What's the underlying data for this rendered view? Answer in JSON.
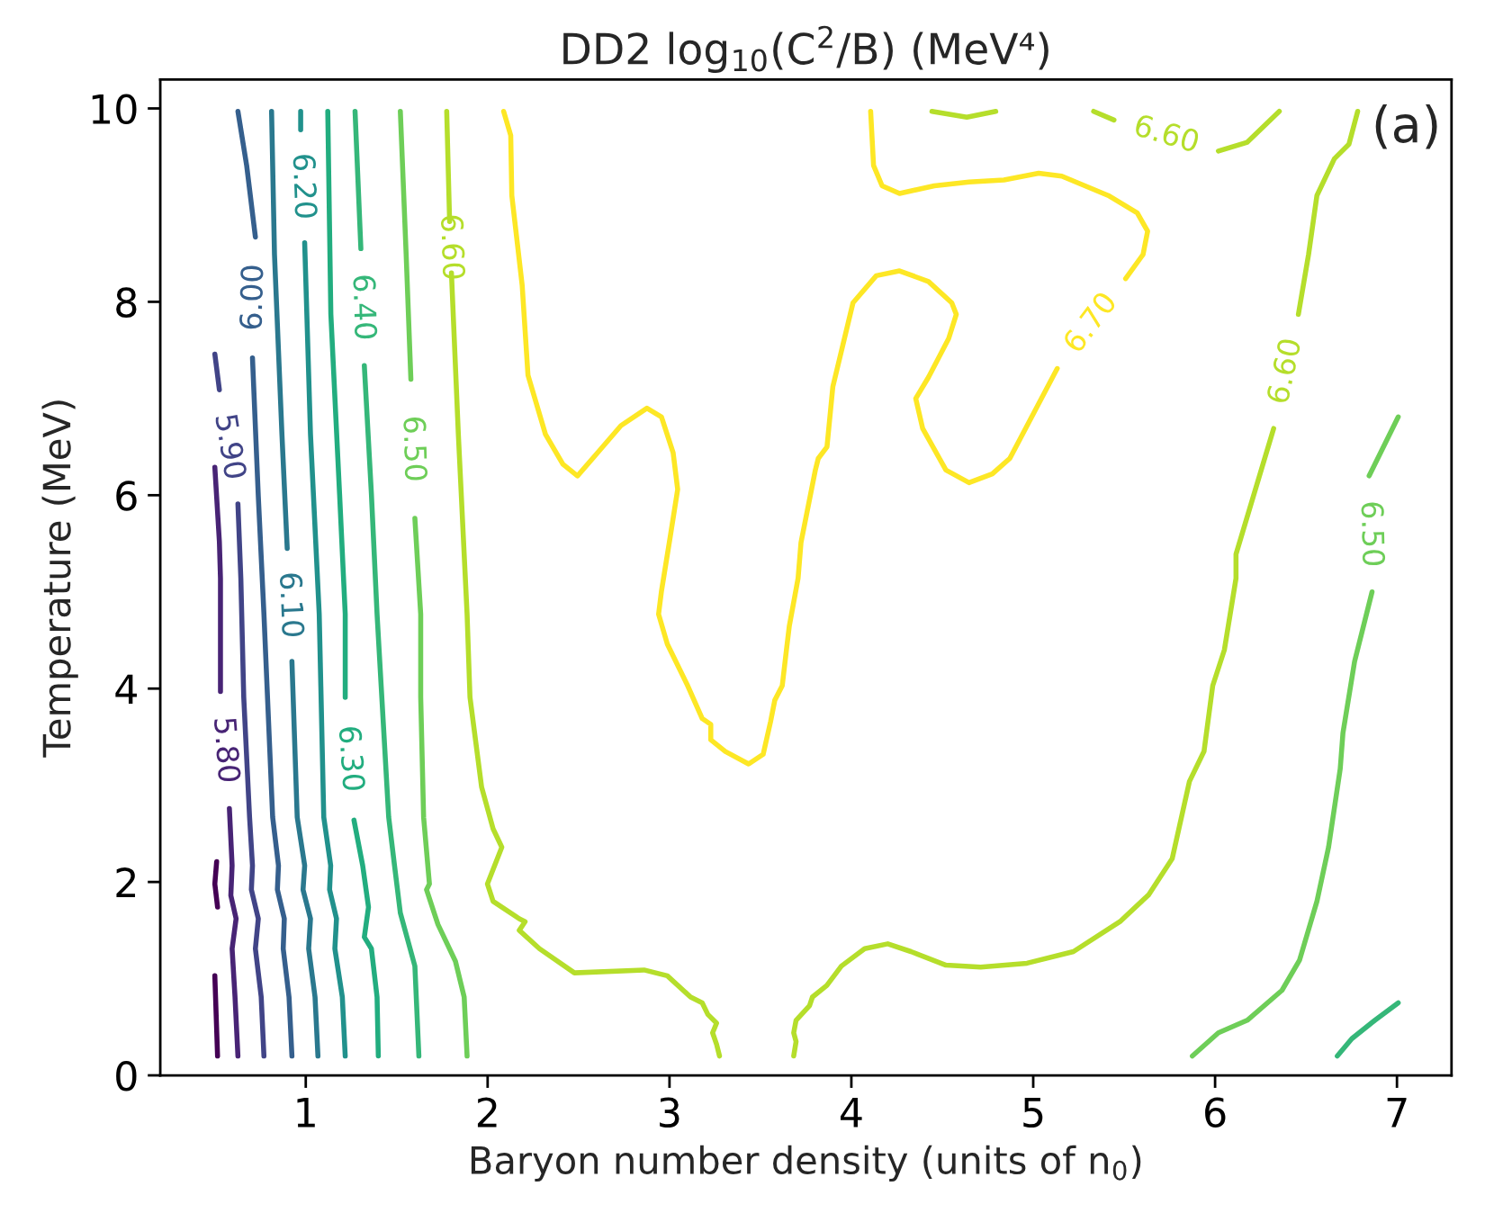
{
  "chart_data": {
    "type": "line",
    "title": "DD2 log$_{10}$(C$^{2}$/B) (MeV⁴)",
    "xlabel": "Baryon number density (units of n$_{0}$)",
    "ylabel": "Temperature (MeV)",
    "xlim": [
      0.2,
      7.3
    ],
    "ylim": [
      0,
      10.3
    ],
    "xticks": [
      1,
      2,
      3,
      4,
      5,
      6,
      7
    ],
    "yticks": [
      0,
      2,
      4,
      6,
      8,
      10
    ],
    "annotations": [
      "(a)"
    ],
    "series": [
      {
        "color": "#440154",
        "x": [
          0.51,
          0.5,
          0.515
        ],
        "values": [
          2.21,
          1.98,
          1.74
        ]
      },
      {
        "color": "#440154",
        "x": [
          0.5,
          0.515
        ],
        "values": [
          1.03,
          0.2
        ]
      },
      {
        "name": "5.80",
        "color": "#482475",
        "x": [
          0.5,
          0.525,
          0.531,
          0.531,
          null,
          0.58,
          0.595,
          0.588,
          0.617,
          0.595,
          0.611,
          0.627
        ],
        "values": [
          6.29,
          5.52,
          5.14,
          3.97,
          null,
          2.76,
          2.17,
          1.86,
          1.62,
          1.31,
          0.81,
          0.2
        ]
      },
      {
        "name": "5.90",
        "color": "#414487",
        "x": [
          0.5,
          0.525,
          null,
          0.627,
          0.643,
          0.659,
          0.691,
          0.707,
          0.701,
          0.739,
          0.723,
          0.755,
          0.77
        ],
        "values": [
          7.46,
          7.09,
          null,
          5.91,
          5.14,
          3.91,
          2.67,
          2.17,
          1.92,
          1.62,
          1.31,
          0.81,
          0.2
        ]
      },
      {
        "name": "6.00",
        "color": "#355f8d",
        "x": [
          0.627,
          0.675,
          0.723,
          null,
          0.707,
          0.739,
          0.77,
          0.818,
          0.85,
          0.844,
          0.882,
          0.876,
          0.908,
          0.924
        ],
        "values": [
          9.97,
          9.41,
          8.67,
          null,
          7.42,
          5.99,
          4.77,
          2.67,
          2.17,
          1.92,
          1.62,
          1.31,
          0.81,
          0.2
        ]
      },
      {
        "name": "6.10",
        "color": "#2a788e",
        "x": [
          0.812,
          0.828,
          0.869,
          0.898,
          null,
          0.924,
          0.953,
          0.994,
          0.985,
          1.026,
          1.016,
          1.051,
          1.067
        ],
        "values": [
          9.97,
          8.49,
          6.63,
          5.45,
          null,
          4.28,
          2.67,
          2.17,
          1.92,
          1.62,
          1.31,
          0.81,
          0.2
        ]
      },
      {
        "name": "6.20",
        "color": "#21918c",
        "x": [
          0.972,
          0.972,
          null,
          0.994,
          1.026,
          1.074,
          1.099,
          1.137,
          1.131,
          1.169,
          1.16,
          1.201,
          1.217
        ],
        "values": [
          9.97,
          9.78,
          null,
          8.61,
          6.63,
          4.77,
          2.67,
          2.17,
          1.92,
          1.62,
          1.31,
          0.81,
          0.2
        ]
      },
      {
        "name": "6.30",
        "color": "#22ad7f",
        "x": [
          1.121,
          1.138,
          1.186,
          1.217,
          1.217,
          null,
          1.265,
          1.313,
          1.345,
          1.322,
          1.361,
          1.392,
          1.399
        ],
        "values": [
          9.97,
          7.87,
          6.01,
          4.77,
          3.91,
          null,
          2.64,
          2.17,
          1.74,
          1.43,
          1.31,
          0.81,
          0.2
        ]
      },
      {
        "name": "6.40",
        "color": "#35b779",
        "x": [
          1.271,
          1.303,
          null,
          1.322,
          1.361,
          1.392,
          1.456,
          1.488,
          1.52,
          1.6,
          1.622
        ],
        "values": [
          9.97,
          8.55,
          null,
          7.34,
          6.01,
          4.77,
          2.67,
          2.17,
          1.68,
          1.13,
          0.2
        ]
      },
      {
        "name": "6.50",
        "color": "#6ece58",
        "x": [
          1.52,
          1.552,
          1.578,
          null,
          1.6,
          1.632,
          1.632,
          1.648,
          1.68,
          1.664,
          1.727,
          1.823,
          1.871,
          1.887
        ],
        "values": [
          9.97,
          8.49,
          7.2,
          null,
          5.76,
          4.77,
          3.91,
          2.67,
          1.98,
          1.92,
          1.56,
          1.18,
          0.81,
          0.2
        ]
      },
      {
        "name": "6.60",
        "color": "#b5de2b",
        "x": [
          1.775,
          1.791,
          null,
          1.801,
          1.839,
          1.887,
          1.903,
          1.967,
          2.03,
          2.078,
          1.999,
          2.03,
          2.174,
          2.206,
          2.174,
          2.285,
          2.477,
          2.86,
          2.988,
          3.116,
          3.18,
          3.211,
          3.259,
          3.237,
          3.259,
          3.275
        ],
        "values": [
          9.97,
          8.83,
          null,
          8.3,
          6.63,
          4.77,
          3.91,
          2.98,
          2.55,
          2.36,
          1.98,
          1.8,
          1.62,
          1.59,
          1.5,
          1.31,
          1.06,
          1.09,
          1.03,
          0.81,
          0.75,
          0.63,
          0.54,
          0.44,
          0.32,
          0.2
        ]
      },
      {
        "name": "6.60",
        "color": "#b5de2b",
        "x": [
          6.784,
          6.736,
          6.656,
          6.56,
          6.514,
          6.458,
          null,
          6.322,
          6.115,
          6.115,
          6.051,
          5.987,
          5.939,
          5.859,
          5.764,
          5.636,
          5.477,
          5.221,
          4.966,
          4.711,
          4.52,
          4.328,
          4.2,
          4.073,
          3.945,
          3.865,
          3.786,
          3.77,
          3.696,
          3.683,
          3.696,
          3.683
        ],
        "values": [
          9.97,
          9.63,
          9.48,
          9.1,
          8.49,
          7.87,
          null,
          6.69,
          5.39,
          5.14,
          4.4,
          4.03,
          3.35,
          3.04,
          2.24,
          1.87,
          1.59,
          1.28,
          1.16,
          1.12,
          1.14,
          1.28,
          1.36,
          1.31,
          1.13,
          0.93,
          0.81,
          0.72,
          0.57,
          0.44,
          0.35,
          0.2
        ]
      },
      {
        "color": "#b5de2b",
        "x": [
          4.443,
          4.635,
          4.794
        ],
        "values": [
          9.97,
          9.91,
          9.97
        ]
      },
      {
        "name": "6.60",
        "color": "#b5de2b",
        "x": [
          5.332,
          5.444,
          null,
          6.018,
          6.177,
          6.353
        ],
        "values": [
          9.97,
          9.88,
          null,
          9.56,
          9.65,
          9.97
        ]
      },
      {
        "name": "6.50",
        "color": "#6ece58",
        "x": [
          7.007,
          6.847,
          null,
          6.863,
          6.767,
          6.703,
          6.688,
          6.624,
          6.56,
          6.464,
          6.368,
          6.177,
          6.018,
          5.875
        ],
        "values": [
          6.81,
          6.2,
          null,
          5.0,
          4.28,
          3.54,
          3.17,
          2.36,
          1.8,
          1.19,
          0.88,
          0.57,
          0.44,
          0.2
        ]
      },
      {
        "color": "#35b779",
        "x": [
          6.672,
          6.752,
          6.879,
          7.007
        ],
        "values": [
          0.2,
          0.38,
          0.57,
          0.75
        ]
      },
      {
        "name": "6.70",
        "color": "#fde725",
        "x": [
          2.088,
          2.127,
          2.133,
          2.19,
          2.222,
          2.318,
          2.414,
          2.494,
          2.605,
          2.733,
          2.876,
          2.956,
          3.02,
          3.045,
          3.004,
          2.956,
          2.94,
          2.988,
          3.1,
          3.18,
          3.227,
          3.227,
          3.307,
          3.435,
          3.515,
          3.556,
          3.579,
          3.62,
          3.643,
          3.659,
          3.707,
          3.723,
          3.802,
          3.818,
          3.866,
          3.898,
          4.009,
          4.137,
          4.265,
          4.424,
          4.552,
          4.577,
          4.535,
          4.424,
          4.354,
          4.392,
          4.52,
          4.647,
          4.775,
          4.871,
          5.132,
          null,
          5.508,
          5.604,
          5.629,
          5.572,
          5.412,
          5.157,
          5.03,
          4.839,
          4.647,
          4.456,
          4.265,
          4.169,
          4.122,
          4.106
        ],
        "values": [
          9.97,
          9.72,
          9.1,
          8.17,
          7.24,
          6.63,
          6.32,
          6.2,
          6.44,
          6.72,
          6.9,
          6.81,
          6.44,
          6.06,
          5.57,
          5.01,
          4.77,
          4.46,
          4.03,
          3.69,
          3.63,
          3.47,
          3.35,
          3.22,
          3.32,
          3.66,
          3.88,
          4.03,
          4.4,
          4.65,
          5.14,
          5.51,
          6.26,
          6.38,
          6.5,
          7.12,
          7.99,
          8.27,
          8.32,
          8.21,
          7.99,
          7.87,
          7.62,
          7.22,
          7.0,
          6.69,
          6.26,
          6.13,
          6.22,
          6.38,
          7.31,
          null,
          8.24,
          8.49,
          8.73,
          8.92,
          9.1,
          9.3,
          9.33,
          9.26,
          9.24,
          9.2,
          9.12,
          9.2,
          9.41,
          9.97
        ]
      }
    ]
  }
}
